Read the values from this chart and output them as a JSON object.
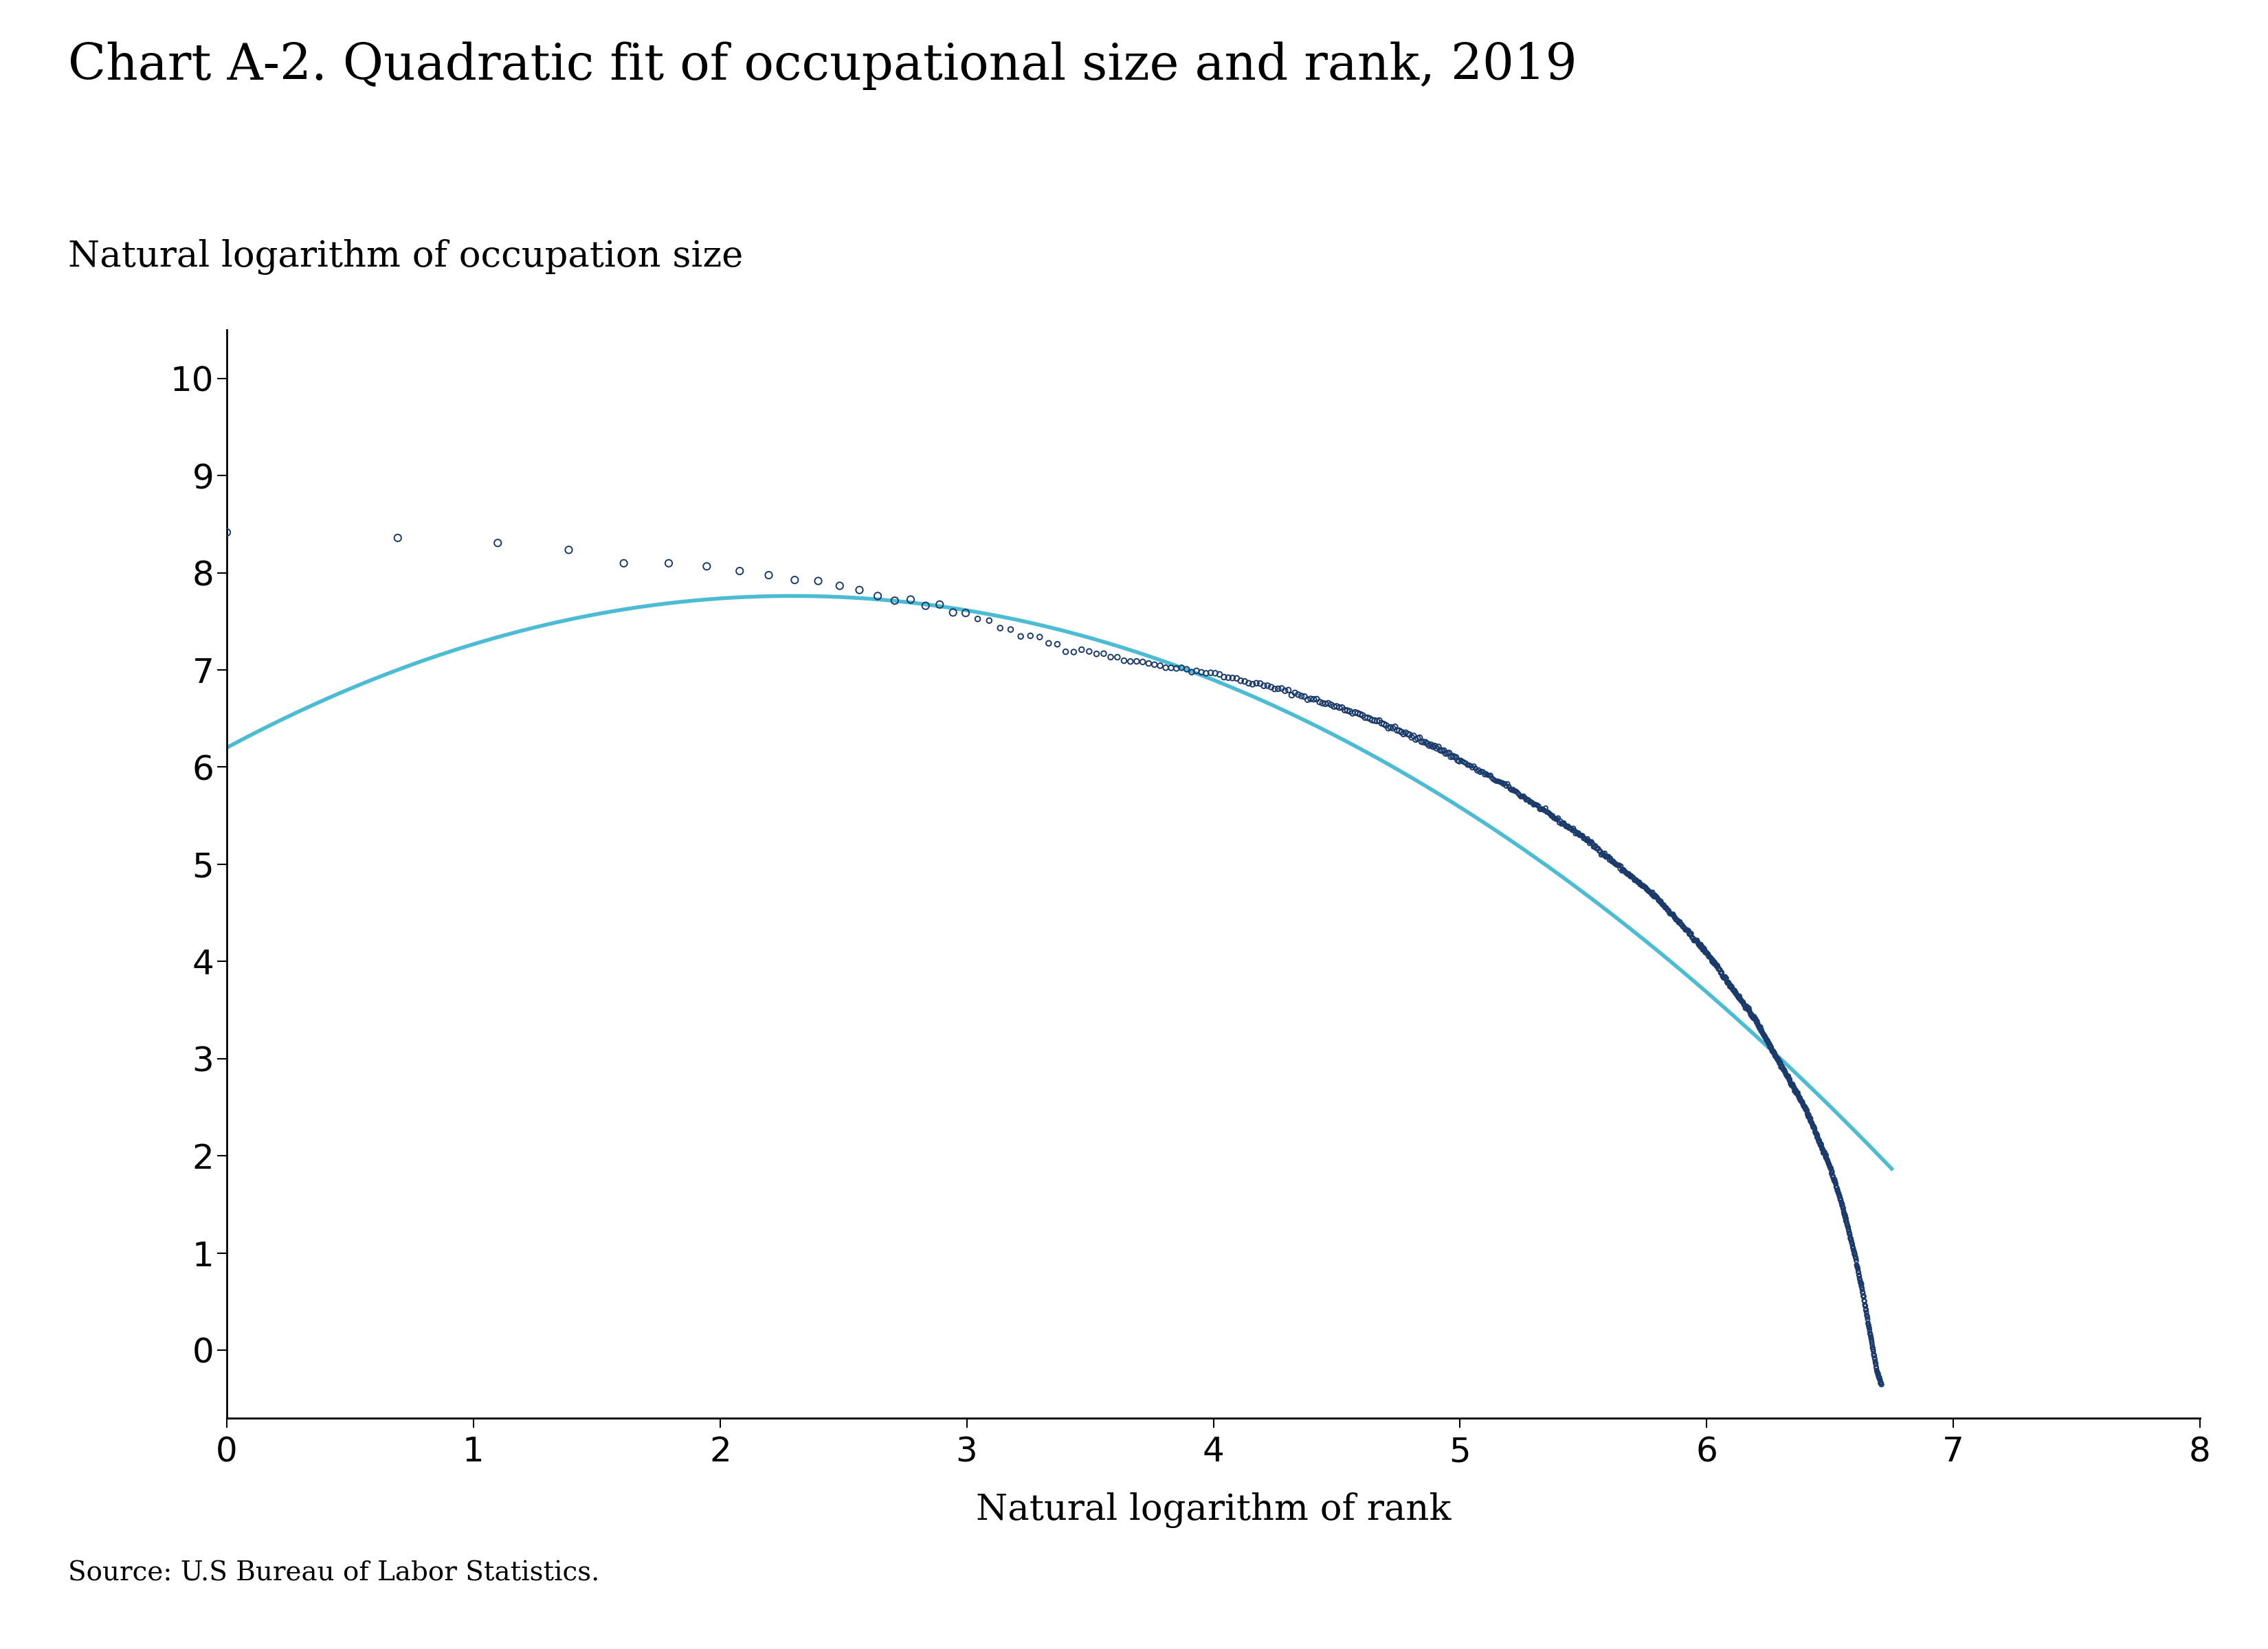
{
  "title": "Chart A-2. Quadratic fit of occupational size and rank, 2019",
  "ylabel": "Natural logarithm of occupation size",
  "xlabel": "Natural logarithm of rank",
  "source": "Source: U.S Bureau of Labor Statistics.",
  "xlim": [
    0,
    8
  ],
  "ylim": [
    -0.7,
    10.5
  ],
  "xticks": [
    0,
    1,
    2,
    3,
    4,
    5,
    6,
    7,
    8
  ],
  "yticks": [
    0,
    1,
    2,
    3,
    4,
    5,
    6,
    7,
    8,
    9,
    10
  ],
  "scatter_color": "#1a3a6b",
  "fit_color": "#4bbcd4",
  "title_fontsize": 52,
  "label_fontsize": 38,
  "tick_fontsize": 36,
  "source_fontsize": 28,
  "quad_a": -0.36,
  "quad_b": 1.5,
  "quad_c": 6.2
}
